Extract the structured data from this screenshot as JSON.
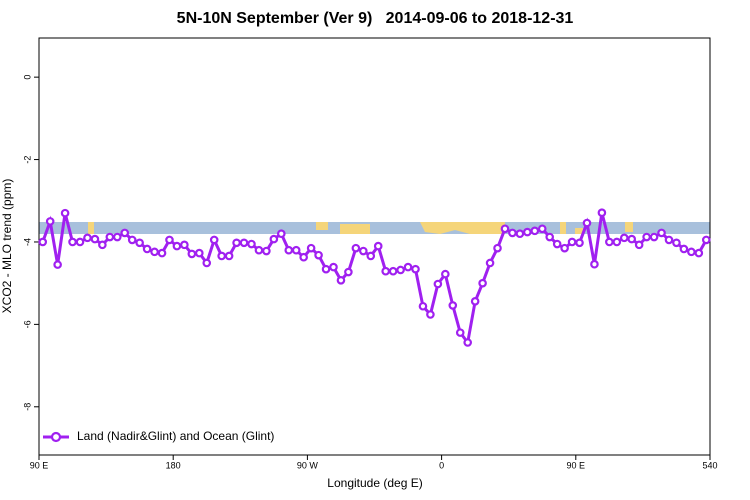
{
  "chart_data": {
    "type": "line",
    "title": "5N-10N September (Ver 9)   2014-09-06 to 2018-12-31",
    "x_label": "Longitude (deg E)",
    "y_label": "XCO2 - MLO trend (ppm)",
    "xlim": [
      90,
      540
    ],
    "ylim": [
      -9.17,
      0.95
    ],
    "xticks": [
      {
        "value": 90,
        "label": "90 E"
      },
      180,
      {
        "value": 270,
        "label": "90 W"
      },
      {
        "value": 360,
        "label": "0"
      },
      {
        "value": 450,
        "label": "90 E"
      },
      540
    ],
    "yticks": [
      0,
      -2,
      -4,
      -6,
      -8
    ],
    "legend": "bottom-left",
    "x": [
      92.5,
      97.5,
      102.5,
      107.5,
      112.5,
      117.5,
      122.5,
      127.5,
      132.5,
      137.5,
      142.5,
      147.5,
      152.5,
      157.5,
      162.5,
      167.5,
      172.5,
      177.5,
      182.5,
      187.5,
      192.5,
      197.5,
      202.5,
      207.5,
      212.5,
      217.5,
      222.5,
      227.5,
      232.5,
      237.5,
      242.5,
      247.5,
      252.5,
      257.5,
      262.5,
      267.5,
      272.5,
      277.5,
      282.5,
      287.5,
      292.5,
      297.5,
      302.5,
      307.5,
      312.5,
      317.5,
      322.5,
      327.5,
      332.5,
      337.5,
      342.5,
      347.5,
      352.5,
      357.5,
      362.5,
      367.5,
      372.5,
      377.5,
      382.5,
      387.5,
      392.5,
      397.5,
      402.5,
      407.5,
      412.5,
      417.5,
      422.5,
      427.5,
      432.5,
      437.5,
      442.5,
      447.5,
      452.5,
      457.5,
      462.5,
      467.5,
      472.5,
      477.5,
      482.5,
      487.5,
      492.5,
      497.5,
      502.5,
      507.5,
      512.5,
      517.5,
      522.5,
      527.5,
      532.5,
      537.5
    ],
    "series": [
      {
        "name": "Land (Nadir&Glint) and Ocean (Glint)",
        "color": "#a020f0",
        "values": [
          -4.0,
          -3.5,
          -4.55,
          -3.3,
          -4.0,
          -4.0,
          -3.9,
          -3.93,
          -4.07,
          -3.88,
          -3.88,
          -3.78,
          -3.95,
          -4.02,
          -4.17,
          -4.24,
          -4.27,
          -3.95,
          -4.1,
          -4.07,
          -4.29,
          -4.27,
          -4.51,
          -3.95,
          -4.34,
          -4.34,
          -4.02,
          -4.02,
          -4.05,
          -4.2,
          -4.22,
          -3.93,
          -3.8,
          -4.2,
          -4.2,
          -4.37,
          -4.15,
          -4.32,
          -4.66,
          -4.61,
          -4.93,
          -4.73,
          -4.15,
          -4.22,
          -4.34,
          -4.1,
          -4.71,
          -4.71,
          -4.68,
          -4.61,
          -4.66,
          -5.56,
          -5.76,
          -5.02,
          -4.78,
          -5.54,
          -6.2,
          -6.44,
          -5.44,
          -5.0,
          -4.51,
          -4.15,
          -3.68,
          -3.78,
          -3.8,
          -3.76,
          -3.73,
          -3.68,
          -3.88,
          -4.05,
          -4.15,
          -4.0,
          -4.02,
          -3.54,
          -4.54,
          -3.29,
          -4.0,
          -4.0,
          -3.9,
          -3.93,
          -4.07,
          -3.88,
          -3.88,
          -3.78,
          -3.95,
          -4.02,
          -4.17,
          -4.24,
          -4.27,
          -3.95
        ]
      }
    ]
  }
}
